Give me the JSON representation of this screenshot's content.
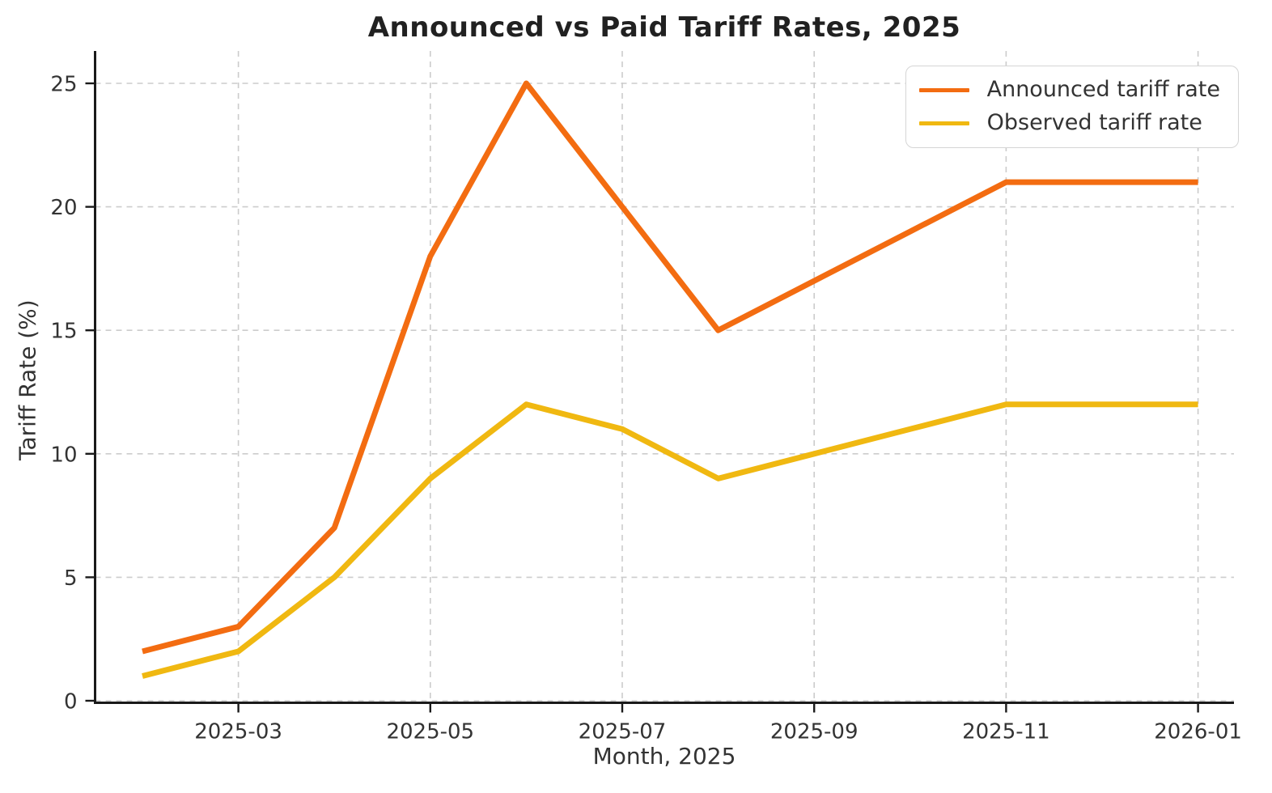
{
  "figure": {
    "background": "#ffffff"
  },
  "chart_data": {
    "type": "line",
    "title": "Announced vs Paid Tariff Rates, 2025",
    "xlabel": "Month, 2025",
    "ylabel": "Tariff Rate (%)",
    "x": [
      "2025-02",
      "2025-03",
      "2025-04",
      "2025-05",
      "2025-06",
      "2025-07",
      "2025-08",
      "2025-09",
      "2025-10",
      "2025-11",
      "2025-12",
      "2026-01"
    ],
    "series": [
      {
        "name": "Announced tariff rate",
        "color": "#F36C11",
        "values": [
          2,
          3,
          7,
          18,
          25,
          20,
          15,
          17,
          19,
          21,
          21,
          21
        ]
      },
      {
        "name": "Observed tariff rate",
        "color": "#F0B811",
        "values": [
          1,
          2,
          5,
          9,
          12,
          11,
          9,
          10,
          11,
          12,
          12,
          12
        ]
      }
    ],
    "yticks": [
      0,
      5,
      10,
      15,
      20,
      25
    ],
    "ylim": [
      0,
      26.3
    ],
    "xtick_indices": [
      1,
      3,
      5,
      7,
      9,
      11
    ],
    "xtick_labels": [
      "2025-03",
      "2025-05",
      "2025-07",
      "2025-09",
      "2025-11",
      "2026-01"
    ],
    "grid": true,
    "grid_style": "dashed",
    "legend_position": "upper right"
  }
}
